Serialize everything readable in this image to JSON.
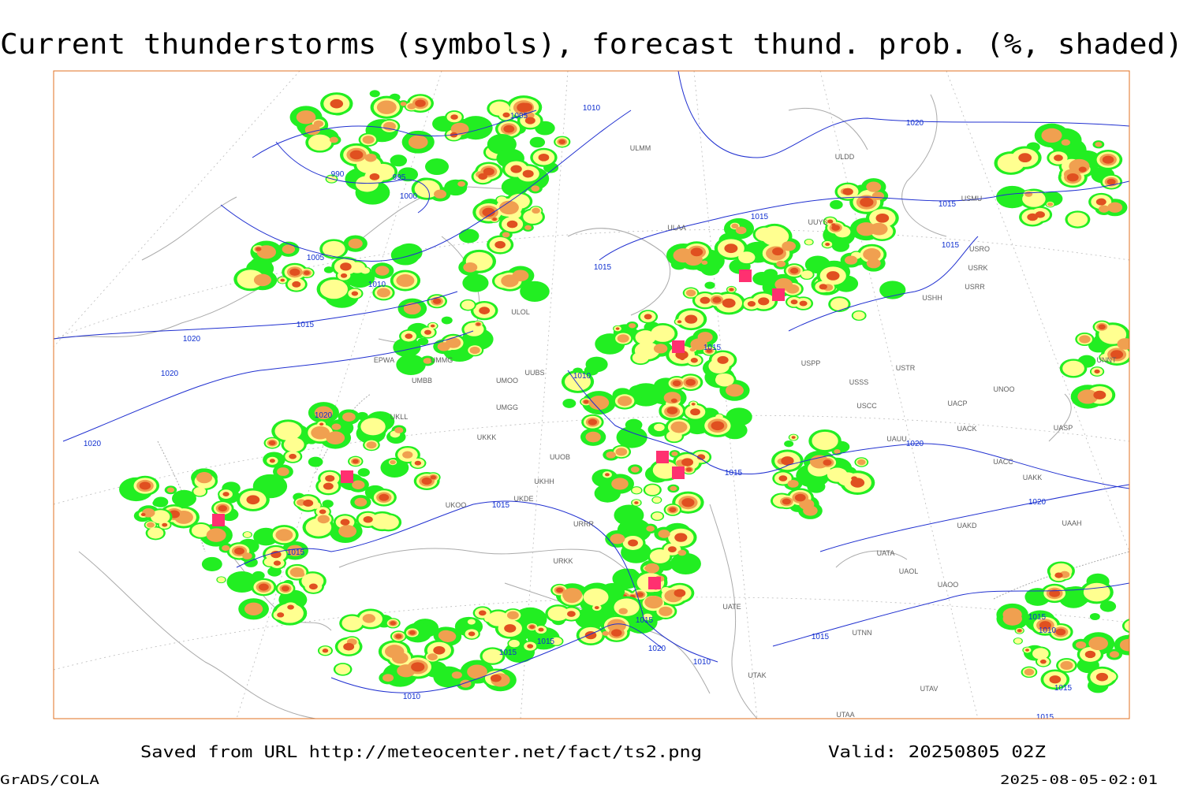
{
  "header": {
    "title": "Current thunderstorms (symbols), forecast thund. prob. (%, shaded)"
  },
  "map": {
    "isobars": [
      "1010",
      "1005",
      "990",
      "995",
      "1000",
      "1005",
      "1010",
      "1015",
      "1020",
      "1020",
      "1020",
      "1020",
      "1015",
      "1015",
      "1020",
      "1015",
      "1015",
      "1015",
      "1010",
      "1015",
      "1020",
      "1020",
      "1015",
      "1015",
      "1015",
      "1015",
      "1015",
      "1020",
      "1010",
      "1010",
      "1015",
      "1015",
      "1010",
      "1015",
      "1015"
    ],
    "stations": [
      "ULMM",
      "ULDD",
      "USMU",
      "ULAA",
      "UUYS",
      "USRO",
      "USRK",
      "USRR",
      "USHH",
      "ULOL",
      "EPWA",
      "UMMG",
      "UMBB",
      "UMOO",
      "UUBS",
      "UMGG",
      "UKLL",
      "UKKK",
      "UUOB",
      "UKHH",
      "UKDE",
      "UKOO",
      "URRR",
      "URKK",
      "UATA",
      "UAOL",
      "UAOO",
      "UATE",
      "UTNN",
      "UTAK",
      "UTAV",
      "UTAA",
      "USSS",
      "USTR",
      "USCC",
      "UACP",
      "UACK",
      "UASP",
      "UAUU",
      "UACC",
      "UAKK",
      "UAKD",
      "UAAH",
      "UNOO",
      "UNNT",
      "USPP"
    ]
  },
  "footer": {
    "source": "Saved from URL http://meteocenter.net/fact/ts2.png",
    "valid": "Valid: 20250805 02Z",
    "software": "GrADS/COLA",
    "timestamp": "2025-08-05-02:01"
  }
}
